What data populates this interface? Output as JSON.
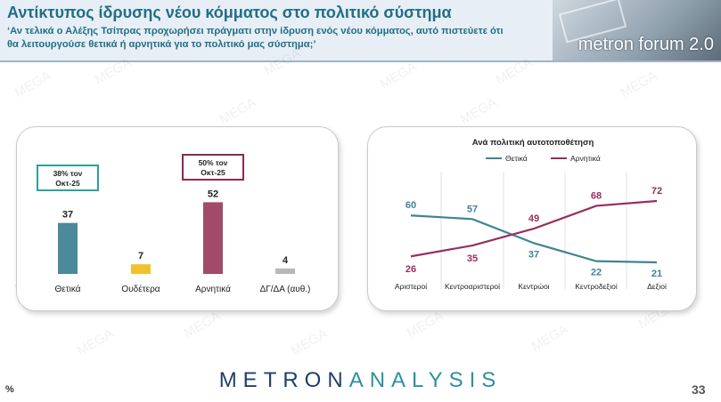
{
  "header": {
    "title": "Αντίκτυπος ίδρυσης νέου κόμματος στο πολιτικό σύστημα",
    "subtitle": "‘Αν τελικά ο Αλέξης Τσίπρας προχωρήσει πράγματι στην ίδρυση ενός νέου κόμματος, αυτό πιστεύετε ότι θα λειτουργούσε θετικά ή αρνητικά για το πολιτικό μας σύστημα;’",
    "logo_text": "metron forum 2.0"
  },
  "watermark": "MEGA",
  "footer": {
    "brand_part1": "METRON",
    "brand_part2": "ANALYSIS",
    "unit": "%",
    "page_number": "33"
  },
  "colors": {
    "teal": "#4a8a9a",
    "gold": "#f2c12e",
    "maroon": "#a24a6a",
    "gray": "#b8b8b8",
    "title": "#1f6f86"
  },
  "chart_data": [
    {
      "type": "bar",
      "categories": [
        "Θετικά",
        "Ουδέτερα",
        "Αρνητικά",
        "ΔΓ/ΔΑ (αυθ.)"
      ],
      "values": [
        37,
        7,
        52,
        4
      ],
      "colors": [
        "#4a8a9a",
        "#f2c12e",
        "#a24a6a",
        "#b8b8b8"
      ],
      "ylim": [
        0,
        60
      ],
      "annotations": [
        {
          "category": "Θετικά",
          "line1": "38% τον",
          "line2": "Οκτ-25",
          "color": "#2aa39a"
        },
        {
          "category": "Αρνητικά",
          "line1": "50% τον",
          "line2": "Οκτ-25",
          "color": "#8a2a52"
        }
      ]
    },
    {
      "type": "line",
      "title": "Ανά πολιτική αυτοτοποθέτηση",
      "categories": [
        "Αριστεροί",
        "Κεντροαριστεροί",
        "Κεντρώοι",
        "Κεντροδεξιοί",
        "Δεξιοί"
      ],
      "series": [
        {
          "name": "Θετικά",
          "values": [
            60,
            57,
            37,
            22,
            21
          ],
          "color": "#3f8493"
        },
        {
          "name": "Αρνητικά",
          "values": [
            26,
            35,
            49,
            68,
            72
          ],
          "color": "#9a2d5e"
        }
      ],
      "ylim": [
        10,
        80
      ],
      "legend": "top-center"
    }
  ]
}
